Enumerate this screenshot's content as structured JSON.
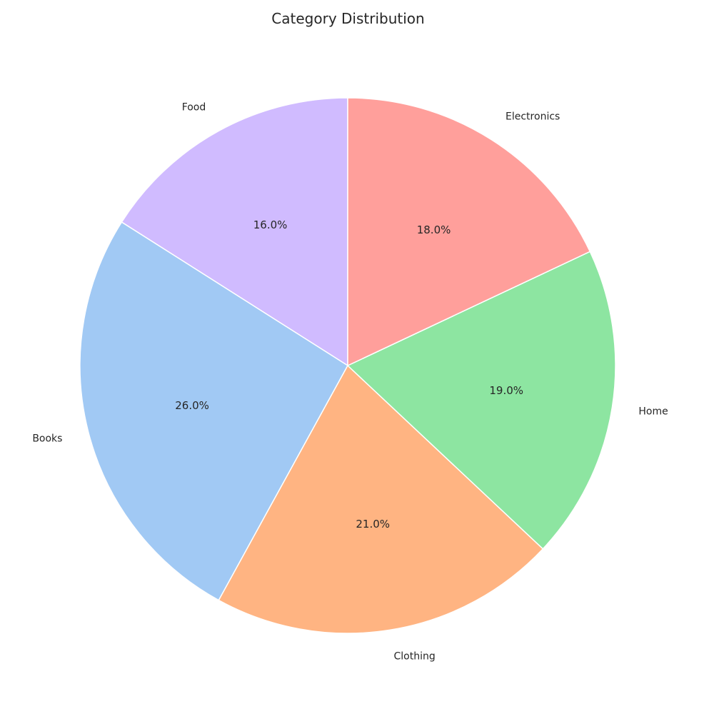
{
  "chart_data": {
    "type": "pie",
    "title": "Category Distribution",
    "categories": [
      "Food",
      "Books",
      "Clothing",
      "Home",
      "Electronics"
    ],
    "values": [
      16.0,
      26.0,
      21.0,
      19.0,
      18.0
    ],
    "percent_labels": [
      "16.0%",
      "26.0%",
      "21.0%",
      "19.0%",
      "18.0%"
    ],
    "colors": [
      "#d0bbff",
      "#a1c9f4",
      "#ffb482",
      "#8de5a1",
      "#ff9f9b"
    ],
    "start_angle_deg": 90,
    "direction": "counterclockwise",
    "legend": "none"
  }
}
